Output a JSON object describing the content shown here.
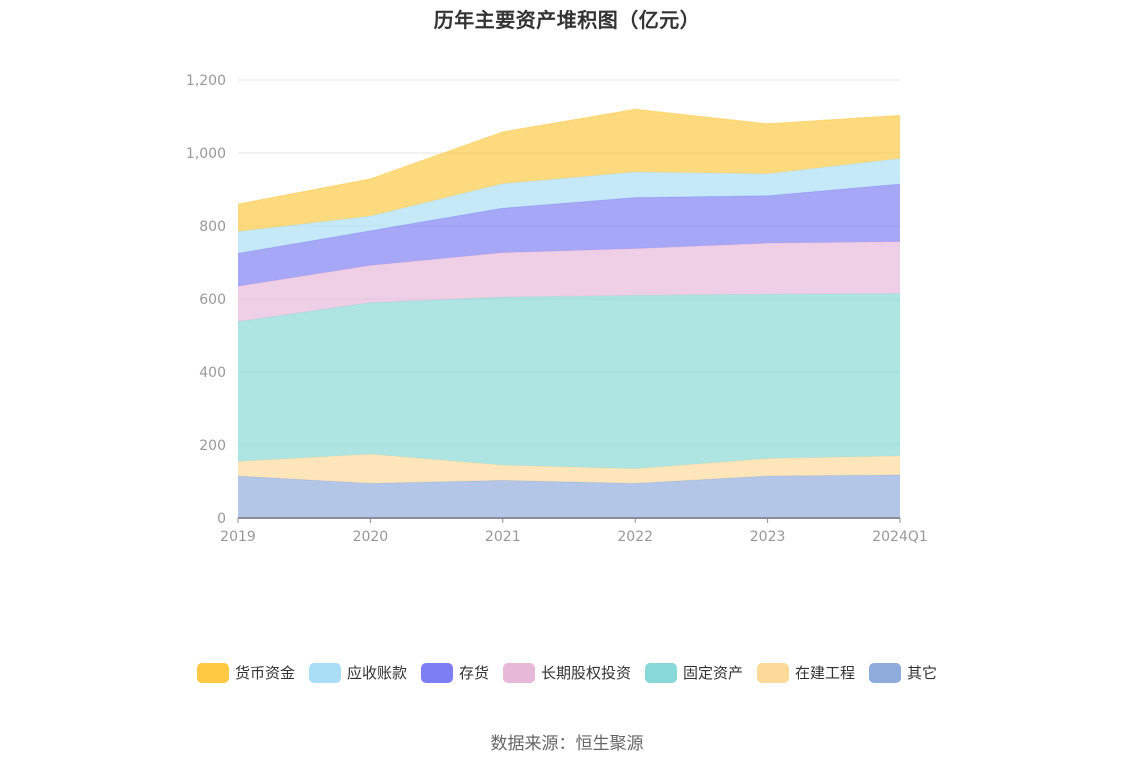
{
  "chart_data": {
    "type": "area",
    "stacked": true,
    "title": "历年主要资产堆积图（亿元）",
    "xlabel": "",
    "ylabel": "",
    "categories": [
      "2019",
      "2020",
      "2021",
      "2022",
      "2023",
      "2024Q1"
    ],
    "ylim": [
      0,
      1200
    ],
    "yticks": [
      0,
      200,
      400,
      600,
      800,
      1000,
      1200
    ],
    "ytick_labels": [
      "0",
      "200",
      "400",
      "600",
      "800",
      "1,000",
      "1,200"
    ],
    "grid": true,
    "legend_position": "bottom",
    "series": [
      {
        "name": "其它",
        "color": "#8fabdb",
        "values": [
          115,
          95,
          103,
          95,
          115,
          118
        ]
      },
      {
        "name": "在建工程",
        "color": "#fdd99a",
        "values": [
          40,
          80,
          42,
          40,
          48,
          52
        ]
      },
      {
        "name": "固定资产",
        "color": "#87d8d6",
        "values": [
          383,
          415,
          460,
          475,
          450,
          445
        ]
      },
      {
        "name": "长期股权投资",
        "color": "#e8b8d9",
        "values": [
          97,
          102,
          122,
          128,
          140,
          142
        ]
      },
      {
        "name": "存货",
        "color": "#7d7ef3",
        "values": [
          90,
          95,
          122,
          140,
          130,
          158
        ]
      },
      {
        "name": "应收账款",
        "color": "#a9def6",
        "values": [
          60,
          40,
          67,
          70,
          60,
          70
        ]
      },
      {
        "name": "货币资金",
        "color": "#fdc943",
        "values": [
          75,
          102,
          142,
          172,
          137,
          118
        ]
      }
    ],
    "legend_order": [
      "货币资金",
      "应收账款",
      "存货",
      "长期股权投资",
      "固定资产",
      "在建工程",
      "其它"
    ]
  },
  "source_text": "数据来源：恒生聚源"
}
